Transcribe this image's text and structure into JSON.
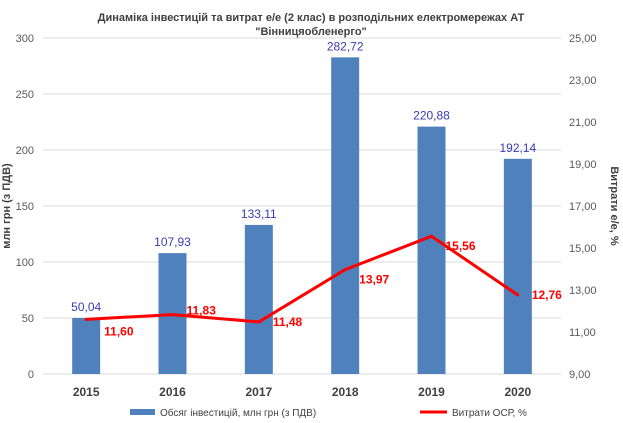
{
  "chart_data": {
    "type": "bar+line",
    "title": [
      "Динаміка інвестицій та витрат е/е (2 клас) в розподільних  електромережах АТ",
      "\"Вінницяобленерго\""
    ],
    "categories": [
      "2015",
      "2016",
      "2017",
      "2018",
      "2019",
      "2020"
    ],
    "series": [
      {
        "name": "Обсяг інвестицій, млн грн (з ПДВ)",
        "type": "bar",
        "axis": "left",
        "color": "#4f81bd",
        "values": [
          50.04,
          107.93,
          133.11,
          282.72,
          220.88,
          192.14
        ],
        "labels": [
          "50,04",
          "107,93",
          "133,11",
          "282,72",
          "220,88",
          "192,14"
        ]
      },
      {
        "name": "Витрати ОСР, %",
        "type": "line",
        "axis": "right",
        "color": "#ff0000",
        "values": [
          11.6,
          11.83,
          11.48,
          13.97,
          15.56,
          12.76
        ],
        "labels": [
          "11,60",
          "11,83",
          "11,48",
          "13,97",
          "15,56",
          "12,76"
        ]
      }
    ],
    "ylabel": "млн грн (з ПДВ)",
    "y2label": "Витрати е/е, %",
    "ylim": [
      0,
      300
    ],
    "y2lim": [
      9,
      25
    ],
    "yticks": [
      "0",
      "50",
      "100",
      "150",
      "200",
      "250",
      "300"
    ],
    "y2ticks": [
      "9,00",
      "11,00",
      "13,00",
      "15,00",
      "17,00",
      "19,00",
      "21,00",
      "23,00",
      "25,00"
    ],
    "grid": true,
    "legend": "bottom"
  }
}
